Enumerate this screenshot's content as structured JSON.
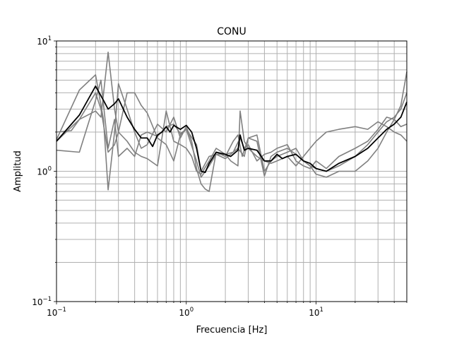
{
  "chart_data": {
    "type": "line",
    "title": "CONU",
    "xlabel": "Frecuencia [Hz]",
    "ylabel": "Amplitud",
    "xscale": "log",
    "yscale": "log",
    "xlim": [
      0.1,
      50
    ],
    "ylim": [
      0.1,
      10
    ],
    "grid": "major and minor",
    "x_ticks": [
      {
        "value": 0.1,
        "base": "10",
        "exp": "−1"
      },
      {
        "value": 1,
        "base": "10",
        "exp": "0"
      },
      {
        "value": 10,
        "base": "10",
        "exp": "1"
      }
    ],
    "y_ticks": [
      {
        "value": 0.1,
        "base": "10",
        "exp": "−1"
      },
      {
        "value": 1,
        "base": "10",
        "exp": "0"
      },
      {
        "value": 10,
        "base": "10",
        "exp": "1"
      }
    ],
    "colors": {
      "components": "#808080",
      "mean": "#000000",
      "grid": "#b0b0b0"
    },
    "series": [
      {
        "color": "#808080",
        "points": [
          [
            0.1,
            1.75
          ],
          [
            0.15,
            4.2
          ],
          [
            0.2,
            5.5
          ],
          [
            0.23,
            2.5
          ],
          [
            0.25,
            0.72
          ],
          [
            0.28,
            2.0
          ],
          [
            0.3,
            4.7
          ],
          [
            0.35,
            3.0
          ],
          [
            0.4,
            2.0
          ],
          [
            0.45,
            1.5
          ],
          [
            0.5,
            1.6
          ],
          [
            0.6,
            2.3
          ],
          [
            0.7,
            2.0
          ],
          [
            0.8,
            2.6
          ],
          [
            0.9,
            1.8
          ],
          [
            1.0,
            2.2
          ],
          [
            1.1,
            1.7
          ],
          [
            1.2,
            1.05
          ],
          [
            1.3,
            0.8
          ],
          [
            1.4,
            0.73
          ],
          [
            1.5,
            0.7
          ],
          [
            1.7,
            1.4
          ],
          [
            2.0,
            1.3
          ],
          [
            2.3,
            1.7
          ],
          [
            2.5,
            1.9
          ],
          [
            2.7,
            1.3
          ],
          [
            3.0,
            1.8
          ],
          [
            3.5,
            1.7
          ],
          [
            4.0,
            0.92
          ],
          [
            4.5,
            1.3
          ],
          [
            5.0,
            1.4
          ],
          [
            6.0,
            1.5
          ],
          [
            7.0,
            1.35
          ],
          [
            8.0,
            1.2
          ],
          [
            9.0,
            1.1
          ],
          [
            10.0,
            0.95
          ],
          [
            12.0,
            0.9
          ],
          [
            15.0,
            1.0
          ],
          [
            20.0,
            1.0
          ],
          [
            25.0,
            1.2
          ],
          [
            30.0,
            1.5
          ],
          [
            35.0,
            2.0
          ],
          [
            40.0,
            2.5
          ],
          [
            45.0,
            3.2
          ],
          [
            50.0,
            5.8
          ]
        ]
      },
      {
        "color": "#808080",
        "points": [
          [
            0.1,
            2.0
          ],
          [
            0.13,
            2.05
          ],
          [
            0.15,
            2.5
          ],
          [
            0.2,
            4.0
          ],
          [
            0.22,
            3.0
          ],
          [
            0.25,
            1.4
          ],
          [
            0.28,
            1.6
          ],
          [
            0.3,
            2.0
          ],
          [
            0.35,
            4.0
          ],
          [
            0.4,
            4.0
          ],
          [
            0.45,
            3.2
          ],
          [
            0.5,
            2.8
          ],
          [
            0.6,
            1.8
          ],
          [
            0.7,
            1.6
          ],
          [
            0.8,
            1.2
          ],
          [
            0.9,
            1.9
          ],
          [
            1.0,
            2.1
          ],
          [
            1.2,
            1.2
          ],
          [
            1.3,
            0.9
          ],
          [
            1.5,
            1.1
          ],
          [
            1.7,
            1.35
          ],
          [
            2.0,
            1.35
          ],
          [
            2.2,
            1.2
          ],
          [
            2.5,
            1.1
          ],
          [
            2.6,
            2.9
          ],
          [
            2.8,
            1.7
          ],
          [
            3.0,
            1.5
          ],
          [
            3.5,
            1.3
          ],
          [
            4.0,
            1.2
          ],
          [
            4.5,
            1.15
          ],
          [
            5.0,
            1.2
          ],
          [
            6.0,
            1.3
          ],
          [
            7.0,
            1.1
          ],
          [
            8.0,
            1.3
          ],
          [
            9.0,
            1.5
          ],
          [
            10.0,
            1.7
          ],
          [
            12.0,
            2.0
          ],
          [
            15.0,
            2.1
          ],
          [
            20.0,
            2.2
          ],
          [
            25.0,
            2.1
          ],
          [
            30.0,
            2.4
          ],
          [
            35.0,
            2.2
          ],
          [
            40.0,
            2.0
          ],
          [
            45.0,
            1.9
          ],
          [
            50.0,
            1.7
          ]
        ]
      },
      {
        "color": "#808080",
        "points": [
          [
            0.1,
            1.7
          ],
          [
            0.15,
            2.5
          ],
          [
            0.2,
            2.9
          ],
          [
            0.22,
            2.6
          ],
          [
            0.25,
            8.2
          ],
          [
            0.28,
            3.0
          ],
          [
            0.3,
            2.0
          ],
          [
            0.35,
            1.7
          ],
          [
            0.4,
            1.4
          ],
          [
            0.45,
            1.3
          ],
          [
            0.5,
            1.25
          ],
          [
            0.6,
            1.1
          ],
          [
            0.7,
            2.9
          ],
          [
            0.8,
            1.7
          ],
          [
            0.9,
            1.6
          ],
          [
            1.0,
            1.5
          ],
          [
            1.1,
            1.3
          ],
          [
            1.2,
            1.0
          ],
          [
            1.3,
            0.95
          ],
          [
            1.5,
            1.2
          ],
          [
            1.7,
            1.5
          ],
          [
            2.0,
            1.35
          ],
          [
            2.3,
            1.4
          ],
          [
            2.6,
            1.8
          ],
          [
            2.8,
            1.5
          ],
          [
            3.0,
            1.6
          ],
          [
            3.5,
            1.2
          ],
          [
            4.0,
            1.35
          ],
          [
            4.5,
            1.4
          ],
          [
            5.0,
            1.5
          ],
          [
            6.0,
            1.6
          ],
          [
            7.0,
            1.2
          ],
          [
            8.0,
            1.1
          ],
          [
            9.0,
            1.05
          ],
          [
            10.0,
            1.2
          ],
          [
            12.0,
            1.05
          ],
          [
            15.0,
            1.3
          ],
          [
            20.0,
            1.5
          ],
          [
            25.0,
            1.7
          ],
          [
            30.0,
            2.1
          ],
          [
            35.0,
            2.6
          ],
          [
            40.0,
            2.5
          ],
          [
            45.0,
            2.2
          ],
          [
            50.0,
            2.3
          ]
        ]
      },
      {
        "color": "#808080",
        "points": [
          [
            0.1,
            1.45
          ],
          [
            0.15,
            1.4
          ],
          [
            0.2,
            3.5
          ],
          [
            0.22,
            5.0
          ],
          [
            0.25,
            1.5
          ],
          [
            0.28,
            2.5
          ],
          [
            0.3,
            1.3
          ],
          [
            0.35,
            1.5
          ],
          [
            0.4,
            1.3
          ],
          [
            0.45,
            1.9
          ],
          [
            0.5,
            2.0
          ],
          [
            0.6,
            1.85
          ],
          [
            0.7,
            2.2
          ],
          [
            0.8,
            2.3
          ],
          [
            0.9,
            1.95
          ],
          [
            1.0,
            2.1
          ],
          [
            1.2,
            1.6
          ],
          [
            1.3,
            1.0
          ],
          [
            1.5,
            1.3
          ],
          [
            1.7,
            1.35
          ],
          [
            2.0,
            1.25
          ],
          [
            2.5,
            1.5
          ],
          [
            2.8,
            1.3
          ],
          [
            3.0,
            1.8
          ],
          [
            3.5,
            1.9
          ],
          [
            4.0,
            1.0
          ],
          [
            4.5,
            1.2
          ],
          [
            5.0,
            1.3
          ],
          [
            6.0,
            1.4
          ],
          [
            7.0,
            1.5
          ],
          [
            8.0,
            1.2
          ],
          [
            9.0,
            1.1
          ],
          [
            10.0,
            1.05
          ],
          [
            12.0,
            1.0
          ],
          [
            15.0,
            1.1
          ],
          [
            20.0,
            1.3
          ],
          [
            25.0,
            1.6
          ],
          [
            30.0,
            2.0
          ],
          [
            35.0,
            2.4
          ],
          [
            40.0,
            2.6
          ],
          [
            45.0,
            3.0
          ],
          [
            50.0,
            4.0
          ]
        ]
      },
      {
        "color": "#000000",
        "width": 1.8,
        "points": [
          [
            0.1,
            1.7
          ],
          [
            0.15,
            2.7
          ],
          [
            0.2,
            4.5
          ],
          [
            0.23,
            3.5
          ],
          [
            0.25,
            3.0
          ],
          [
            0.28,
            3.3
          ],
          [
            0.3,
            3.6
          ],
          [
            0.35,
            2.6
          ],
          [
            0.4,
            2.1
          ],
          [
            0.45,
            1.8
          ],
          [
            0.5,
            1.8
          ],
          [
            0.55,
            1.55
          ],
          [
            0.6,
            1.9
          ],
          [
            0.65,
            2.0
          ],
          [
            0.7,
            2.2
          ],
          [
            0.75,
            2.0
          ],
          [
            0.8,
            2.25
          ],
          [
            0.9,
            2.1
          ],
          [
            1.0,
            2.25
          ],
          [
            1.1,
            2.0
          ],
          [
            1.2,
            1.5
          ],
          [
            1.3,
            1.0
          ],
          [
            1.4,
            0.98
          ],
          [
            1.5,
            1.15
          ],
          [
            1.7,
            1.4
          ],
          [
            2.0,
            1.35
          ],
          [
            2.2,
            1.3
          ],
          [
            2.5,
            1.45
          ],
          [
            2.6,
            1.9
          ],
          [
            2.8,
            1.45
          ],
          [
            3.0,
            1.5
          ],
          [
            3.5,
            1.45
          ],
          [
            4.0,
            1.2
          ],
          [
            4.5,
            1.2
          ],
          [
            5.0,
            1.35
          ],
          [
            5.5,
            1.25
          ],
          [
            6.0,
            1.3
          ],
          [
            7.0,
            1.35
          ],
          [
            8.0,
            1.2
          ],
          [
            9.0,
            1.15
          ],
          [
            10.0,
            1.05
          ],
          [
            12.0,
            1.0
          ],
          [
            15.0,
            1.15
          ],
          [
            20.0,
            1.3
          ],
          [
            25.0,
            1.5
          ],
          [
            30.0,
            1.8
          ],
          [
            35.0,
            2.1
          ],
          [
            40.0,
            2.3
          ],
          [
            45.0,
            2.6
          ],
          [
            50.0,
            3.4
          ]
        ]
      }
    ]
  }
}
